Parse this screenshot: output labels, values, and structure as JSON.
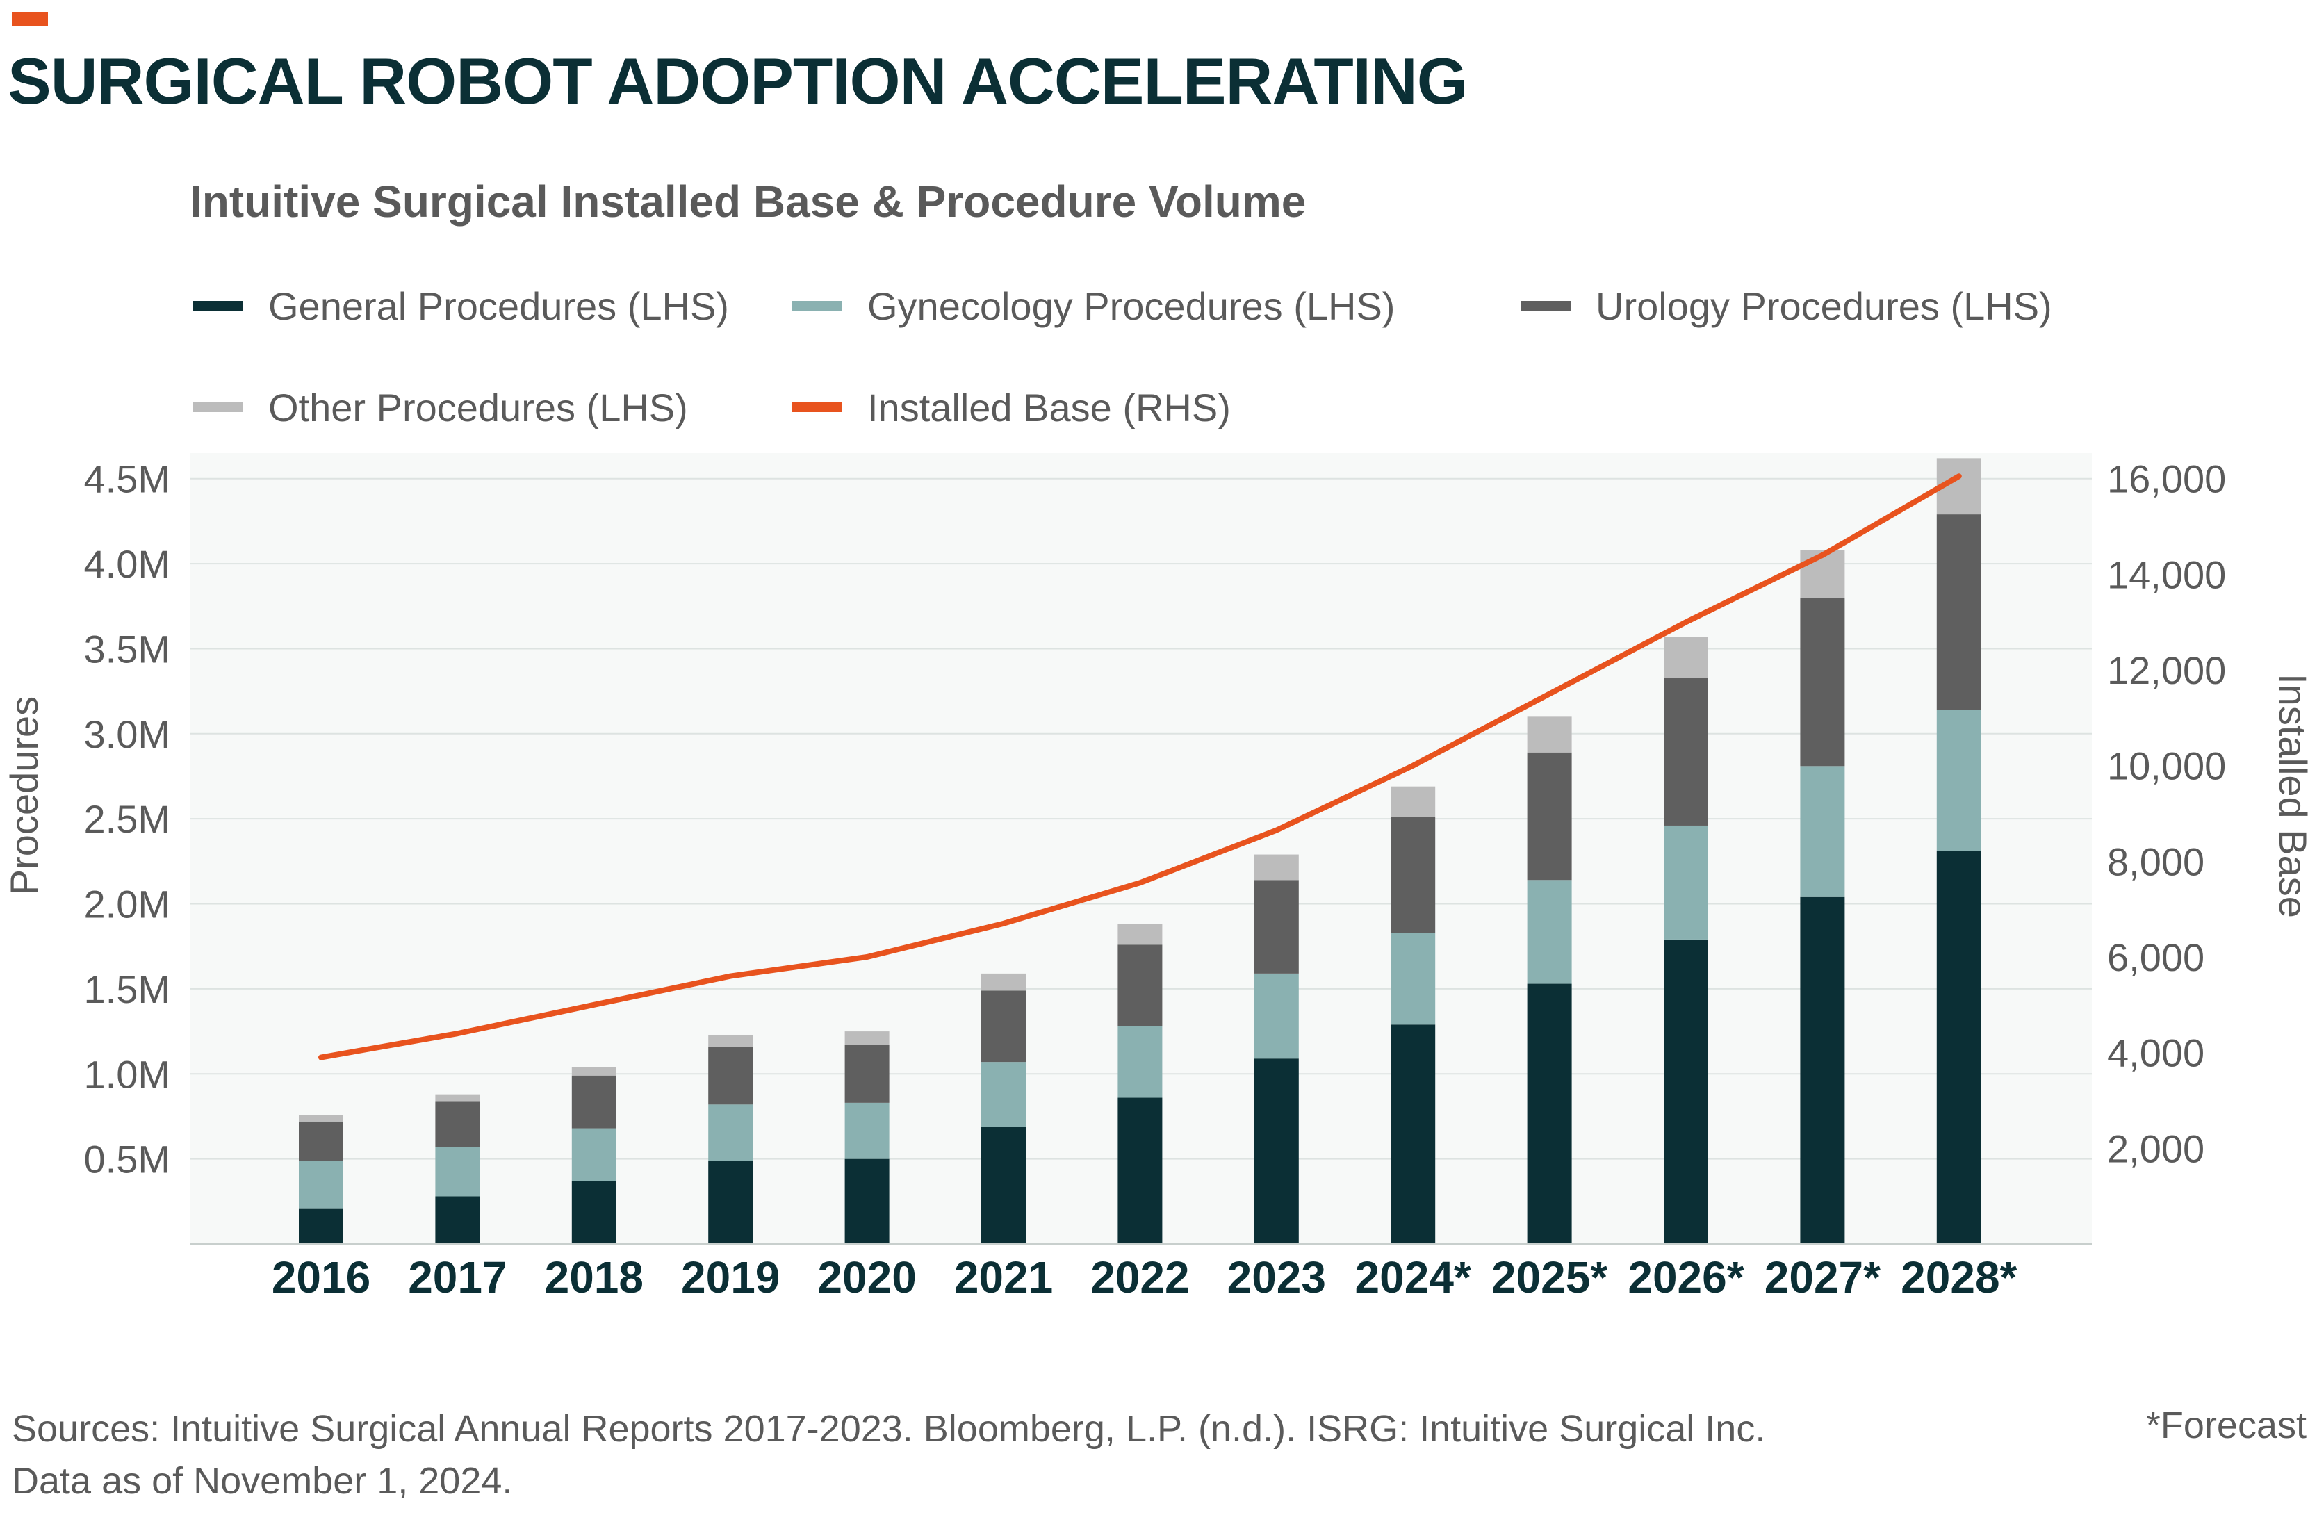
{
  "header": {
    "title": "SURGICAL ROBOT ADOPTION ACCELERATING",
    "accent_color": "#e8531e"
  },
  "chart_data": {
    "type": "bar",
    "subtype": "stacked-bar-with-line-secondary-axis",
    "title": "Intuitive Surgical Installed Base & Procedure Volume",
    "ylabel": "Procedures",
    "y2label": "Installed Base",
    "ylim": [
      0,
      4.65
    ],
    "y2lim": [
      0,
      16533
    ],
    "yticks": [
      0.5,
      1.0,
      1.5,
      2.0,
      2.5,
      3.0,
      3.5,
      4.0,
      4.5
    ],
    "ytick_labels": [
      "0.5M",
      "1.0M",
      "1.5M",
      "2.0M",
      "2.5M",
      "3.0M",
      "3.5M",
      "4.0M",
      "4.5M"
    ],
    "y2ticks": [
      2000,
      4000,
      6000,
      8000,
      10000,
      12000,
      14000,
      16000
    ],
    "y2tick_labels": [
      "2,000",
      "4,000",
      "6,000",
      "8,000",
      "10,000",
      "12,000",
      "14,000",
      "16,000"
    ],
    "categories": [
      "2016",
      "2017",
      "2018",
      "2019",
      "2020",
      "2021",
      "2022",
      "2023",
      "2024*",
      "2025*",
      "2026*",
      "2027*",
      "2028*"
    ],
    "series": [
      {
        "name": "General Procedures (LHS)",
        "type": "bar",
        "axis": "left",
        "color": "#0b2f35",
        "values": [
          0.21,
          0.28,
          0.37,
          0.49,
          0.5,
          0.69,
          0.86,
          1.09,
          1.29,
          1.53,
          1.79,
          2.04,
          2.31
        ]
      },
      {
        "name": "Gynecology Procedures (LHS)",
        "type": "bar",
        "axis": "left",
        "color": "#8ab1b1",
        "values": [
          0.28,
          0.29,
          0.31,
          0.33,
          0.33,
          0.38,
          0.42,
          0.5,
          0.54,
          0.61,
          0.67,
          0.77,
          0.83
        ]
      },
      {
        "name": "Urology Procedures (LHS)",
        "type": "bar",
        "axis": "left",
        "color": "#5f5f5f",
        "values": [
          0.23,
          0.27,
          0.31,
          0.34,
          0.34,
          0.42,
          0.48,
          0.55,
          0.68,
          0.75,
          0.87,
          0.99,
          1.15
        ]
      },
      {
        "name": "Other Procedures (LHS)",
        "type": "bar",
        "axis": "left",
        "color": "#bcbcbc",
        "values": [
          0.04,
          0.04,
          0.05,
          0.07,
          0.08,
          0.1,
          0.12,
          0.15,
          0.18,
          0.21,
          0.24,
          0.28,
          0.33
        ]
      },
      {
        "name": "Installed Base (RHS)",
        "type": "line",
        "axis": "right",
        "color": "#e8531e",
        "values": [
          3900,
          4400,
          5000,
          5600,
          6000,
          6700,
          7550,
          8650,
          10000,
          11500,
          13000,
          14400,
          16050
        ]
      }
    ],
    "legend": "top",
    "grid": true,
    "plot_background": "#f7f9f8"
  },
  "footer": {
    "sources_line1": "Sources: Intuitive Surgical Annual Reports 2017-2023. Bloomberg, L.P. (n.d.). ISRG: Intuitive Surgical Inc.",
    "sources_line2": "Data as of November 1, 2024.",
    "forecast_note": "*Forecast"
  }
}
